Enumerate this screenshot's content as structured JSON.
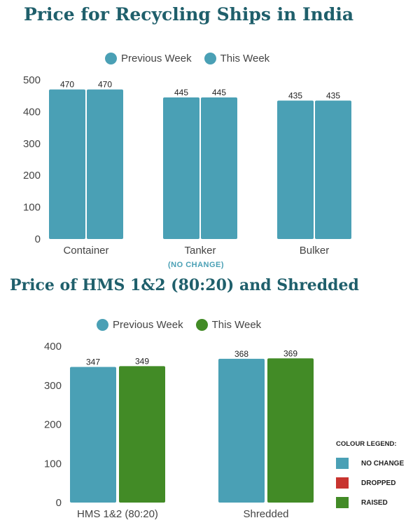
{
  "colors": {
    "no_change": "#4aa0b5",
    "dropped": "#c8342f",
    "raised": "#428b26",
    "title": "#1f5f6b"
  },
  "note": "(NO CHANGE)",
  "colour_legend": {
    "title": "COLOUR LEGEND:",
    "items": [
      {
        "label": "NO CHANGE",
        "color": "#4aa0b5"
      },
      {
        "label": "DROPPED",
        "color": "#c8342f"
      },
      {
        "label": "RAISED",
        "color": "#428b26"
      }
    ]
  },
  "chart_data": [
    {
      "type": "bar",
      "title": "Price for Recycling Ships in India",
      "categories": [
        "Container",
        "Tanker",
        "Bulker"
      ],
      "series": [
        {
          "name": "Previous Week",
          "color": "#4aa0b5",
          "values": [
            470,
            445,
            435
          ]
        },
        {
          "name": "This Week",
          "color": "#4aa0b5",
          "values": [
            470,
            445,
            435
          ]
        }
      ],
      "yticks": [
        "0",
        "100",
        "200",
        "300",
        "400",
        "500"
      ],
      "ylim": [
        0,
        500
      ],
      "legend": "top-center",
      "grid": false
    },
    {
      "type": "bar",
      "title": "Price of HMS 1&2 (80:20) and Shredded",
      "categories": [
        "HMS 1&2 (80:20)",
        "Shredded"
      ],
      "series": [
        {
          "name": "Previous Week",
          "color": "#4aa0b5",
          "values": [
            347,
            368
          ]
        },
        {
          "name": "This Week",
          "color": "#428b26",
          "values": [
            349,
            369
          ]
        }
      ],
      "yticks": [
        "0",
        "100",
        "200",
        "300",
        "400"
      ],
      "ylim": [
        0,
        400
      ],
      "legend": "top-center",
      "grid": false
    }
  ]
}
